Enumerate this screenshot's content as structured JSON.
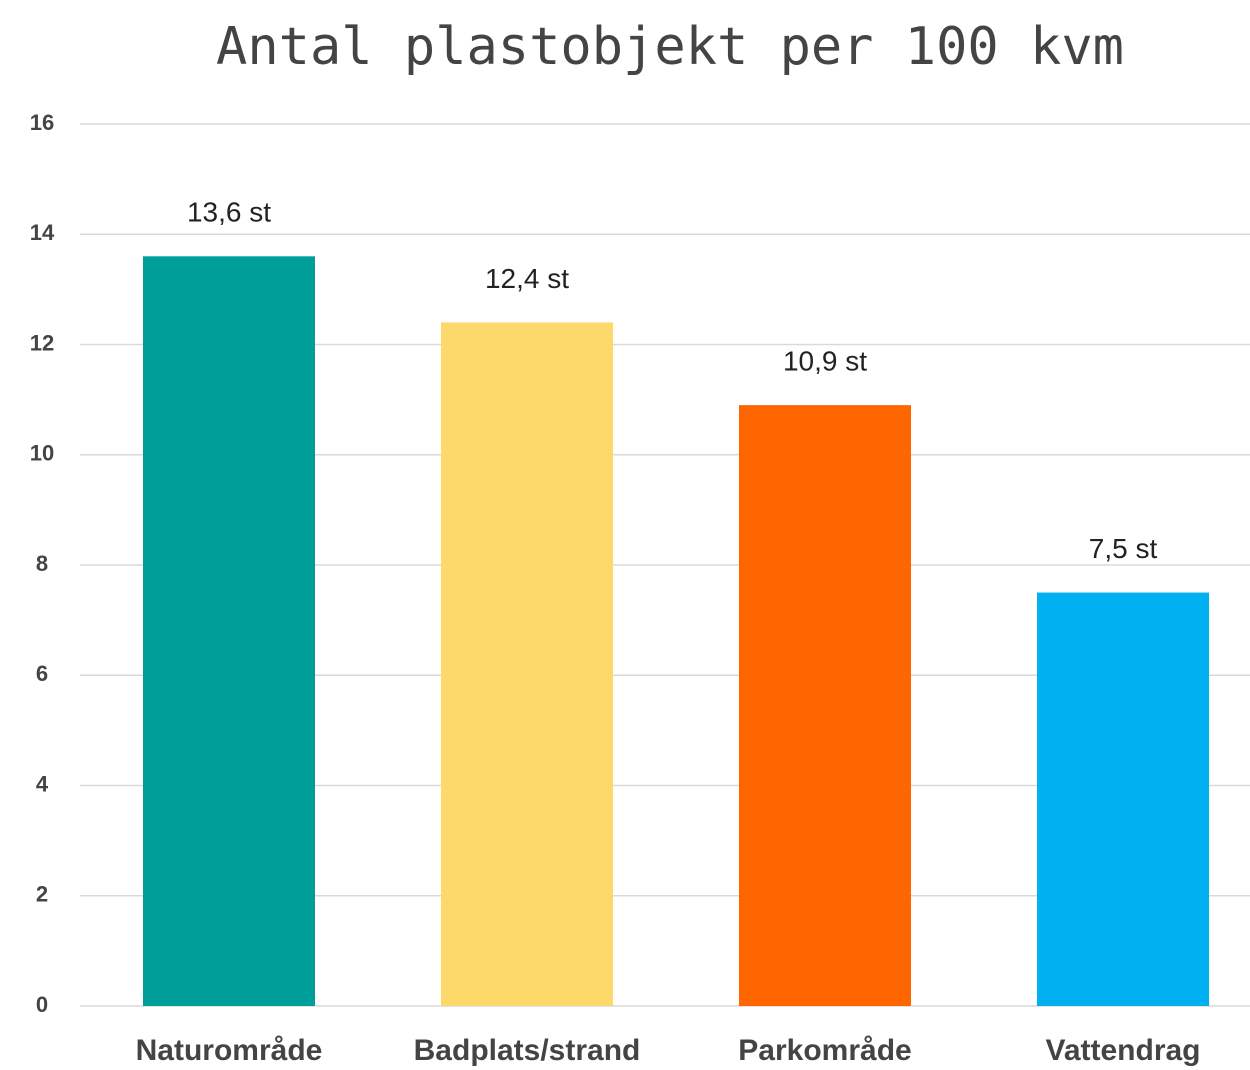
{
  "chart_data": {
    "type": "bar",
    "title": "Antal plastobjekt per 100 kvm",
    "categories": [
      "Naturområde",
      "Badplats/strand",
      "Parkområde",
      "Vattendrag"
    ],
    "values": [
      13.6,
      12.4,
      10.9,
      7.5
    ],
    "value_labels": [
      "13,6 st",
      "12,4 st",
      "10,9 st",
      "7,5 st"
    ],
    "colors": [
      "#009e99",
      "#fdd86a",
      "#ff6600",
      "#00b0f0"
    ],
    "ylim": [
      0,
      16
    ],
    "yticks": [
      0,
      2,
      4,
      6,
      8,
      10,
      12,
      14,
      16
    ],
    "grid": true
  }
}
